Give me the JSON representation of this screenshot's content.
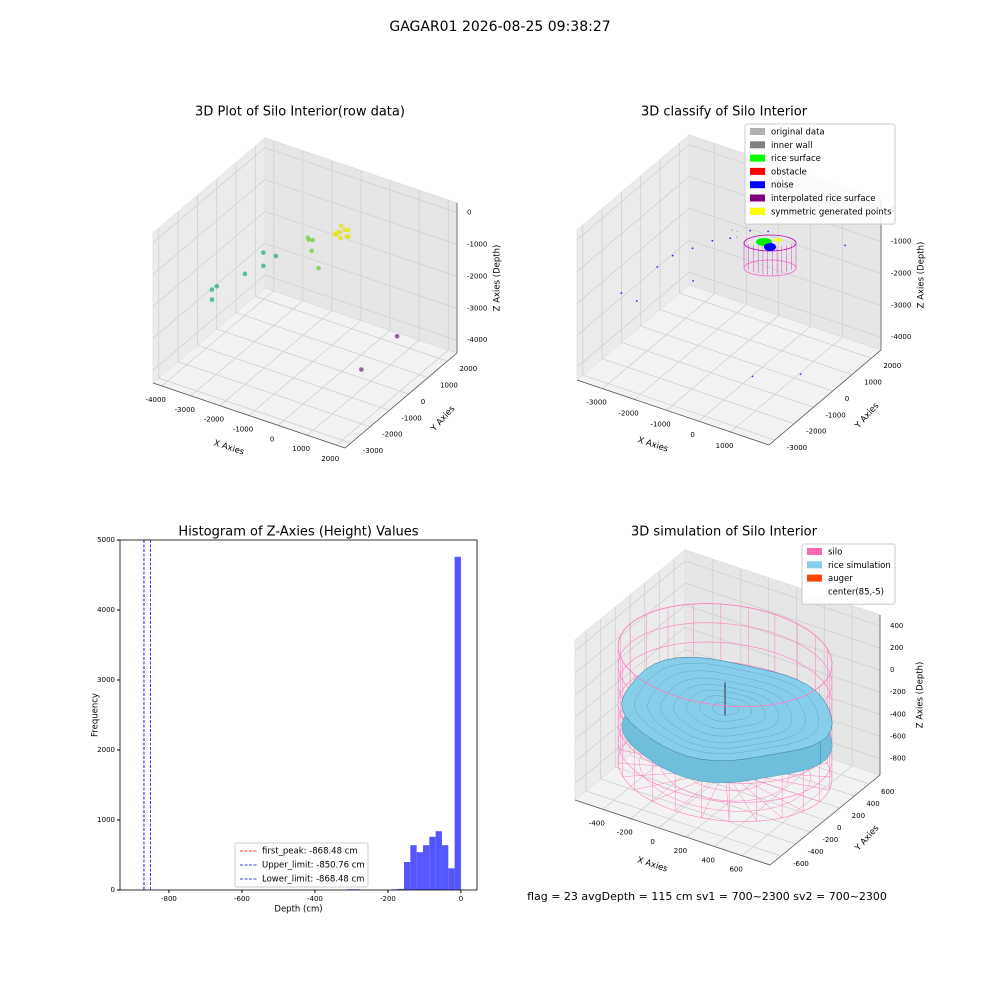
{
  "title": "GAGAR01 2026-08-25 09:38:27",
  "status": "flag = 23  avgDepth = 115 cm  sv1 = 700~2300  sv2 = 700~2300",
  "chart_data": [
    {
      "type": "scatter3d",
      "title": "3D Plot of Silo Interior(row data)",
      "xlabel": "X Axies",
      "ylabel": "Y Axies",
      "zlabel": "Z Axies (Depth)",
      "xlim": [
        -4300,
        2300
      ],
      "ylim": [
        -3300,
        2500
      ],
      "zlim": [
        -4400,
        300
      ],
      "xticks": [
        -4000,
        -3000,
        -2000,
        -1000,
        0,
        1000,
        2000
      ],
      "yticks": [
        -3000,
        -2000,
        -1000,
        0,
        1000,
        2000
      ],
      "zticks": [
        0,
        -1000,
        -2000,
        -3000,
        -4000
      ],
      "series": [
        {
          "color": "#e6e619",
          "points": [
            [
              -200,
              200,
              -200
            ],
            [
              -100,
              300,
              -150
            ],
            [
              -300,
              100,
              -250
            ],
            [
              0,
              250,
              -300
            ],
            [
              -250,
              350,
              -100
            ],
            [
              -150,
              150,
              -350
            ],
            [
              100,
              200,
              -250
            ],
            [
              -400,
              300,
              -400
            ],
            [
              -50,
              400,
              -200
            ],
            [
              -350,
              250,
              -300
            ]
          ]
        },
        {
          "color": "#7ccf4a",
          "points": [
            [
              -1000,
              0,
              -600
            ],
            [
              -1200,
              100,
              -700
            ],
            [
              -900,
              -200,
              -800
            ],
            [
              -600,
              -300,
              -1200
            ],
            [
              -1100,
              -100,
              -500
            ]
          ]
        },
        {
          "color": "#35b08f",
          "points": [
            [
              -2000,
              -400,
              -1200
            ],
            [
              -2300,
              -600,
              -1500
            ],
            [
              -2800,
              -800,
              -1800
            ],
            [
              -3500,
              -1200,
              -2200
            ],
            [
              -3800,
              -1000,
              -2500
            ],
            [
              -3600,
              -1300,
              -2600
            ],
            [
              -2500,
              -300,
              -1300
            ]
          ]
        },
        {
          "color": "#7a3f8f",
          "points": [
            [
              2000,
              -2000,
              -2700
            ],
            [
              2100,
              -300,
              -2500
            ]
          ]
        }
      ]
    },
    {
      "type": "scatter3d",
      "title": "3D classify of Silo Interior",
      "xlabel": "X Axies",
      "ylabel": "Y Axies",
      "zlabel": "Z Axies (Depth)",
      "xlim": [
        -3800,
        2200
      ],
      "ylim": [
        -3300,
        2500
      ],
      "zlim": [
        -4400,
        300
      ],
      "xticks": [
        -3000,
        -2000,
        -1000,
        0,
        1000
      ],
      "yticks": [
        -3000,
        -2000,
        -1000,
        0,
        1000,
        2000
      ],
      "zticks": [
        0,
        -1000,
        -2000,
        -3000,
        -4000
      ],
      "legend": "upper right",
      "series": [
        {
          "name": "original data",
          "color": "#b0b0b0",
          "points": [
            [
              -1000,
              100,
              -500
            ],
            [
              -800,
              0,
              -600
            ],
            [
              -900,
              200,
              -550
            ]
          ]
        },
        {
          "name": "inner wall",
          "color": "#808080",
          "points": []
        },
        {
          "name": "rice surface",
          "color": "#00ff00",
          "points": []
        },
        {
          "name": "obstacle",
          "color": "#ff0000",
          "points": []
        },
        {
          "name": "noise",
          "color": "#0000ff",
          "points": [
            [
              -3500,
              -1500,
              -2500
            ],
            [
              -3200,
              -1200,
              -2800
            ],
            [
              -2800,
              -800,
              -1800
            ],
            [
              -2500,
              -500,
              -1500
            ],
            [
              -2000,
              -300,
              -1200
            ],
            [
              -1500,
              -100,
              -900
            ],
            [
              -1000,
              0,
              -700
            ],
            [
              -500,
              200,
              -400
            ],
            [
              0,
              300,
              -300
            ],
            [
              1500,
              1800,
              -1000
            ],
            [
              1800,
              -1000,
              -3500
            ],
            [
              1200,
              -2500,
              -3000
            ],
            [
              -1800,
              -600,
              -2000
            ]
          ]
        },
        {
          "name": "interpolated rice surface",
          "color": "#800080",
          "points": []
        },
        {
          "name": "symmetric generated points",
          "color": "#ffff00",
          "points": []
        }
      ]
    },
    {
      "type": "histogram",
      "title": "Histogram of Z-Axies (Height) Values",
      "xlabel": "Depth (cm)",
      "ylabel": "Frequency",
      "xlim": [
        -934,
        44
      ],
      "ylim": [
        0,
        5000
      ],
      "xticks": [
        -800,
        -600,
        -400,
        -200,
        0
      ],
      "yticks": [
        0,
        1000,
        2000,
        3000,
        4000,
        5000
      ],
      "color": "#4d4dff",
      "bins": [
        -312,
        -294.67,
        -277.33,
        -260,
        -242.67,
        -225.33,
        -208,
        -190.67,
        -173.33,
        -156,
        -138.67,
        -121.33,
        -104,
        -86.67,
        -69.33,
        -52,
        -34.67,
        -17.33,
        0
      ],
      "values": [
        10,
        10,
        0,
        0,
        0,
        0,
        0,
        10,
        15,
        400,
        640,
        540,
        640,
        760,
        840,
        640,
        310,
        4760
      ],
      "lines": [
        {
          "label": "first_peak: -868.48 cm",
          "value": -868.48,
          "color": "#ff0000"
        },
        {
          "label": "Upper_limit: -850.76 cm",
          "value": -850.76,
          "color": "#0000ff"
        },
        {
          "label": "Lower_limit: -868.48 cm",
          "value": -868.48,
          "color": "#0000ff"
        }
      ]
    },
    {
      "type": "surface3d",
      "title": "3D simulation of Silo Interior",
      "xlabel": "X Axies",
      "ylabel": "Y Axies",
      "zlabel": "Z Axies (Depth)",
      "xlim": [
        -600,
        800
      ],
      "ylim": [
        -750,
        750
      ],
      "zlim": [
        -950,
        500
      ],
      "xticks": [
        -400,
        -200,
        0,
        200,
        400,
        600
      ],
      "yticks": [
        -600,
        -400,
        -200,
        0,
        200,
        400,
        600
      ],
      "zticks": [
        400,
        200,
        0,
        -200,
        -400,
        -600,
        -800
      ],
      "legend": "upper right",
      "series": [
        {
          "name": "silo",
          "color": "#ff69b4"
        },
        {
          "name": "rice simulation",
          "color": "#87ceeb"
        },
        {
          "name": "auger",
          "color": "#ff4500"
        },
        {
          "name": "center(85,-5)",
          "color": "#ffffff"
        }
      ]
    }
  ]
}
